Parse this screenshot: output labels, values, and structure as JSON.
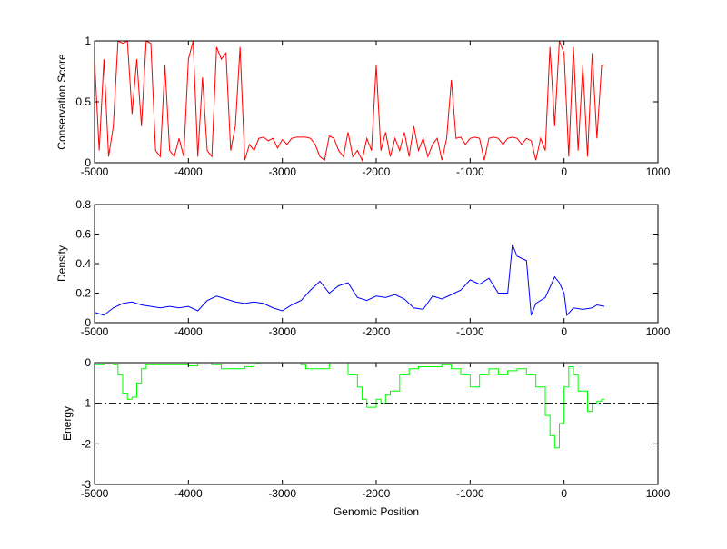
{
  "chart_data": [
    {
      "type": "line",
      "title": "",
      "xlabel": "",
      "ylabel": "Conservation Score",
      "xlim": [
        -5000,
        1000
      ],
      "ylim": [
        0,
        1
      ],
      "xticks": [
        "-5000",
        "-4000",
        "-3000",
        "-2000",
        "-1000",
        "0",
        "1000"
      ],
      "yticks": [
        "0",
        "0.5",
        "1"
      ],
      "ytick_values": [
        0,
        0.5,
        1
      ],
      "color": "#ff0000",
      "x": [
        -5000,
        -4950,
        -4900,
        -4850,
        -4800,
        -4750,
        -4700,
        -4650,
        -4600,
        -4550,
        -4500,
        -4450,
        -4400,
        -4350,
        -4300,
        -4250,
        -4200,
        -4150,
        -4100,
        -4050,
        -4000,
        -3950,
        -3900,
        -3850,
        -3800,
        -3750,
        -3700,
        -3650,
        -3600,
        -3550,
        -3500,
        -3450,
        -3400,
        -3350,
        -3300,
        -3250,
        -3200,
        -3150,
        -3100,
        -3050,
        -3000,
        -2950,
        -2900,
        -2850,
        -2800,
        -2750,
        -2700,
        -2650,
        -2600,
        -2550,
        -2500,
        -2450,
        -2400,
        -2350,
        -2300,
        -2250,
        -2200,
        -2150,
        -2100,
        -2050,
        -2000,
        -1950,
        -1900,
        -1850,
        -1800,
        -1750,
        -1700,
        -1650,
        -1600,
        -1550,
        -1500,
        -1450,
        -1400,
        -1350,
        -1300,
        -1250,
        -1200,
        -1150,
        -1100,
        -1050,
        -1000,
        -950,
        -900,
        -850,
        -800,
        -750,
        -700,
        -650,
        -600,
        -550,
        -500,
        -450,
        -400,
        -350,
        -300,
        -250,
        -200,
        -150,
        -100,
        -50,
        0,
        50,
        100,
        150,
        200,
        250,
        300,
        350,
        400,
        425
      ],
      "y": [
        0.85,
        0.1,
        0.85,
        0.05,
        0.3,
        1,
        0.98,
        1,
        0.4,
        0.85,
        0.3,
        1,
        0.98,
        0.1,
        0.05,
        0.8,
        0.1,
        0.05,
        0.2,
        0.05,
        0.85,
        1,
        0.05,
        0.7,
        0.1,
        0.05,
        0.95,
        0.85,
        0.9,
        0.1,
        0.3,
        0.95,
        0.02,
        0.15,
        0.1,
        0.2,
        0.21,
        0.18,
        0.2,
        0.12,
        0.19,
        0.15,
        0.2,
        0.21,
        0.21,
        0.21,
        0.2,
        0.15,
        0.05,
        0.02,
        0.22,
        0.2,
        0.1,
        0.05,
        0.25,
        0.05,
        0.1,
        0.02,
        0.2,
        0.1,
        0.8,
        0.1,
        0.25,
        0.05,
        0.2,
        0.1,
        0.25,
        0.05,
        0.3,
        0.1,
        0.2,
        0.05,
        0.15,
        0.2,
        0.02,
        0.2,
        0.68,
        0.2,
        0.21,
        0.15,
        0.2,
        0.21,
        0.2,
        0.02,
        0.2,
        0.21,
        0.2,
        0.15,
        0.2,
        0.21,
        0.2,
        0.15,
        0.2,
        0.18,
        0.02,
        0.2,
        0.1,
        0.95,
        0.3,
        1,
        0.9,
        0.05,
        0.95,
        0.1,
        0.8,
        0.05,
        0.9,
        0.2,
        0.8,
        0.8
      ]
    },
    {
      "type": "line",
      "title": "",
      "xlabel": "",
      "ylabel": "Density",
      "xlim": [
        -5000,
        1000
      ],
      "ylim": [
        0,
        0.8
      ],
      "xticks": [
        "-5000",
        "-4000",
        "-3000",
        "-2000",
        "-1000",
        "0",
        "1000"
      ],
      "yticks": [
        "0",
        "0.2",
        "0.4",
        "0.6",
        "0.8"
      ],
      "ytick_values": [
        0,
        0.2,
        0.4,
        0.6,
        0.8
      ],
      "color": "#0000ff",
      "x": [
        -5000,
        -4900,
        -4800,
        -4700,
        -4600,
        -4500,
        -4400,
        -4300,
        -4200,
        -4100,
        -4000,
        -3900,
        -3800,
        -3700,
        -3600,
        -3500,
        -3400,
        -3300,
        -3200,
        -3100,
        -3000,
        -2900,
        -2800,
        -2700,
        -2600,
        -2500,
        -2400,
        -2300,
        -2200,
        -2100,
        -2000,
        -1900,
        -1800,
        -1700,
        -1600,
        -1500,
        -1400,
        -1300,
        -1200,
        -1100,
        -1000,
        -900,
        -800,
        -700,
        -600,
        -550,
        -500,
        -400,
        -350,
        -300,
        -200,
        -100,
        -50,
        0,
        30,
        100,
        200,
        300,
        350,
        430
      ],
      "y": [
        0.07,
        0.05,
        0.1,
        0.13,
        0.14,
        0.12,
        0.11,
        0.1,
        0.11,
        0.1,
        0.11,
        0.08,
        0.15,
        0.18,
        0.16,
        0.14,
        0.13,
        0.14,
        0.13,
        0.1,
        0.08,
        0.12,
        0.15,
        0.22,
        0.28,
        0.2,
        0.25,
        0.27,
        0.17,
        0.15,
        0.18,
        0.17,
        0.19,
        0.16,
        0.1,
        0.09,
        0.18,
        0.16,
        0.19,
        0.22,
        0.29,
        0.26,
        0.3,
        0.2,
        0.2,
        0.53,
        0.45,
        0.42,
        0.05,
        0.13,
        0.17,
        0.31,
        0.27,
        0.2,
        0.05,
        0.1,
        0.09,
        0.1,
        0.12,
        0.11
      ]
    },
    {
      "type": "line",
      "title": "",
      "xlabel": "Genomic Position",
      "ylabel": "Energy",
      "xlim": [
        -5000,
        1000
      ],
      "ylim": [
        -3,
        0
      ],
      "xticks": [
        "-5000",
        "-4000",
        "-3000",
        "-2000",
        "-1000",
        "0",
        "1000"
      ],
      "yticks": [
        "-3",
        "-2",
        "-1",
        "0"
      ],
      "ytick_values": [
        -3,
        -2,
        -1,
        0
      ],
      "color": "#00ff00",
      "threshold": -1,
      "x": [
        -5000,
        -4900,
        -4800,
        -4750,
        -4700,
        -4650,
        -4600,
        -4550,
        -4500,
        -4450,
        -4200,
        -4000,
        -3900,
        -3750,
        -3650,
        -3500,
        -3400,
        -3300,
        -3250,
        -2800,
        -2750,
        -2500,
        -2300,
        -2200,
        -2150,
        -2100,
        -2000,
        -1950,
        -1900,
        -1850,
        -1750,
        -1650,
        -1550,
        -1400,
        -1300,
        -1200,
        -1100,
        -1000,
        -900,
        -800,
        -700,
        -600,
        -500,
        -400,
        -300,
        -200,
        -150,
        -100,
        -50,
        0,
        50,
        100,
        150,
        250,
        300,
        350,
        400,
        430
      ],
      "y": [
        -0.05,
        -0.03,
        -0.05,
        -0.3,
        -0.75,
        -0.9,
        -0.85,
        -0.5,
        -0.15,
        -0.05,
        -0.05,
        -0.08,
        0,
        -0.05,
        -0.15,
        -0.15,
        -0.1,
        -0.03,
        0,
        -0.05,
        -0.15,
        0,
        -0.3,
        -0.6,
        -0.9,
        -1.1,
        -0.9,
        -1.0,
        -0.8,
        -0.7,
        -0.3,
        -0.15,
        -0.1,
        -0.1,
        -0.05,
        -0.15,
        -0.3,
        -0.6,
        -0.3,
        -0.15,
        -0.3,
        -0.2,
        -0.15,
        -0.3,
        -0.6,
        -1.3,
        -1.8,
        -2.1,
        -1.5,
        -0.6,
        -0.1,
        -0.3,
        -0.7,
        -1.2,
        -1.0,
        -0.95,
        -0.9,
        -0.9
      ]
    }
  ]
}
